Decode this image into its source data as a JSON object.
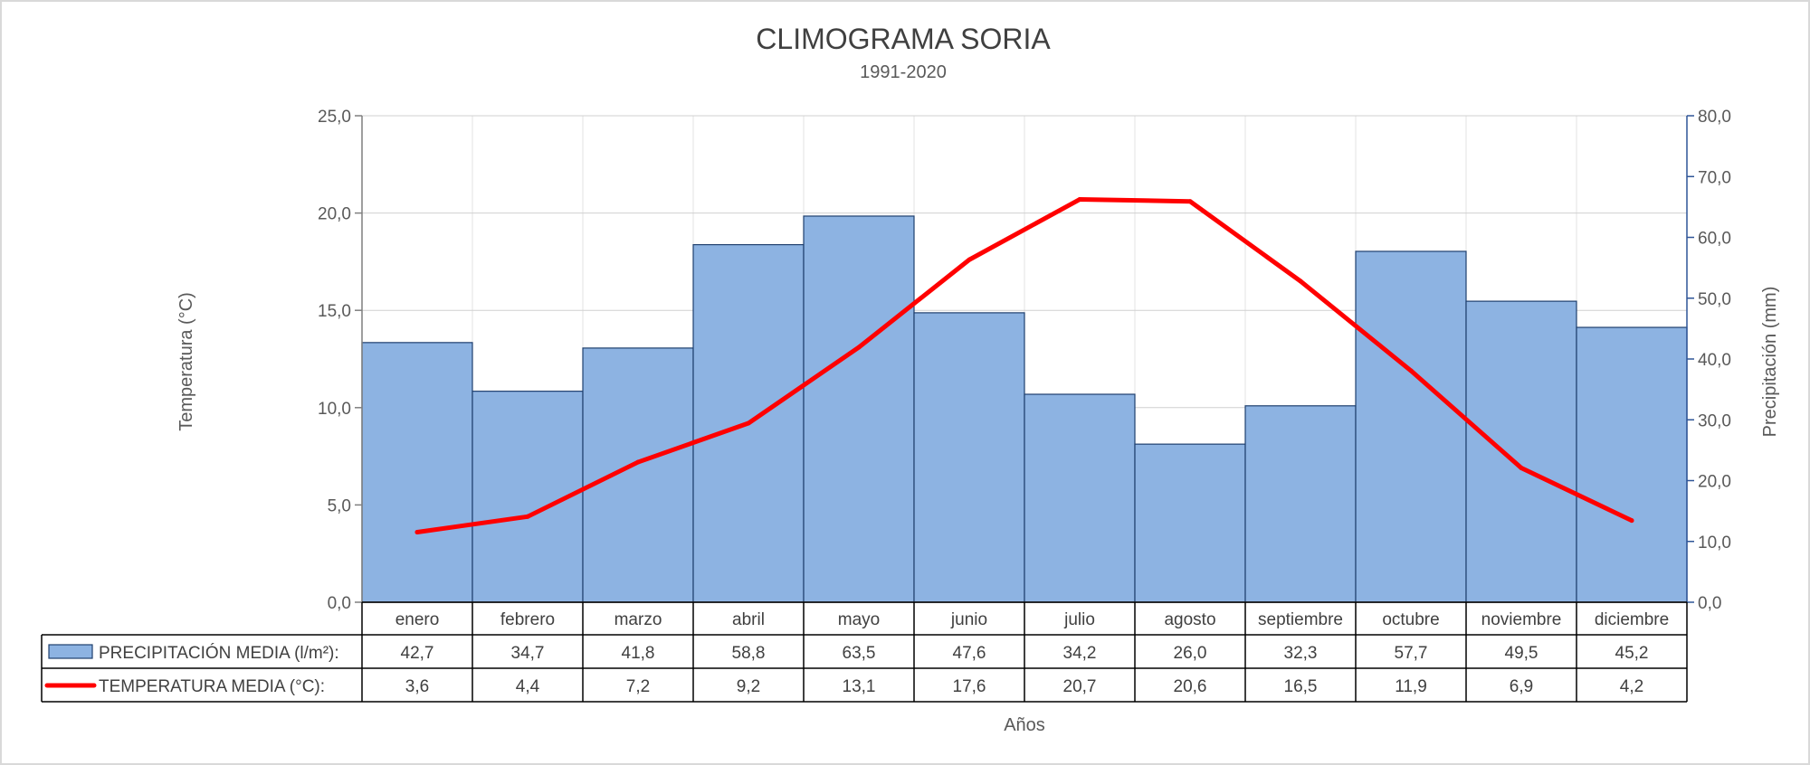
{
  "chart_data": {
    "type": "bar",
    "title": "CLIMOGRAMA SORIA",
    "subtitle": "1991-2020",
    "categories": [
      "enero",
      "febrero",
      "marzo",
      "abril",
      "mayo",
      "junio",
      "julio",
      "agosto",
      "septiembre",
      "octubre",
      "noviembre",
      "diciembre"
    ],
    "xlabel": "Años",
    "ylabel_left": "Temperatura (°C)",
    "ylabel_right": "Precipitación (mm)",
    "ylim_left": [
      0,
      25
    ],
    "ylim_right": [
      0,
      80
    ],
    "yticks_left": [
      "0,0",
      "5,0",
      "10,0",
      "15,0",
      "20,0",
      "25,0"
    ],
    "yticks_right": [
      "0,0",
      "10,0",
      "20,0",
      "30,0",
      "40,0",
      "50,0",
      "60,0",
      "70,0",
      "80,0"
    ],
    "grid": true,
    "series": [
      {
        "name": "PRECIPITACIÓN MEDIA (l/m²):",
        "type": "bar",
        "axis": "right",
        "color": "#8db3e2",
        "values": [
          42.7,
          34.7,
          41.8,
          58.8,
          63.5,
          47.6,
          34.2,
          26.0,
          32.3,
          57.7,
          49.5,
          45.2
        ],
        "labels": [
          "42,7",
          "34,7",
          "41,8",
          "58,8",
          "63,5",
          "47,6",
          "34,2",
          "26,0",
          "32,3",
          "57,7",
          "49,5",
          "45,2"
        ]
      },
      {
        "name": "TEMPERATURA MEDIA (°C):",
        "type": "line",
        "axis": "left",
        "color": "#ff0000",
        "values": [
          3.6,
          4.4,
          7.2,
          9.2,
          13.1,
          17.6,
          20.7,
          20.6,
          16.5,
          11.9,
          6.9,
          4.2
        ],
        "labels": [
          "3,6",
          "4,4",
          "7,2",
          "9,2",
          "13,1",
          "17,6",
          "20,7",
          "20,6",
          "16,5",
          "11,9",
          "6,9",
          "4,2"
        ]
      }
    ]
  }
}
